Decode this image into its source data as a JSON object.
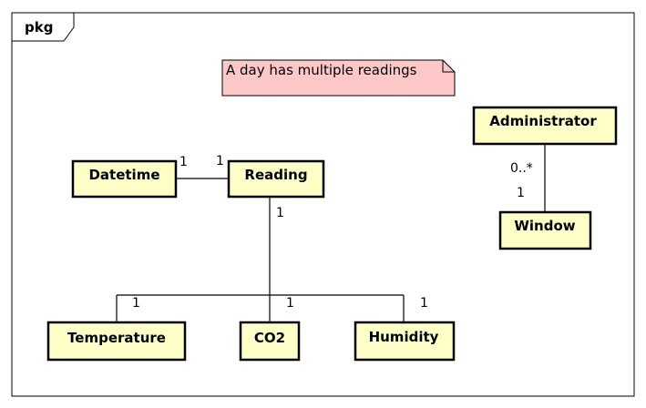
{
  "package": {
    "name": "pkg"
  },
  "note": {
    "text": "A day has multiple readings"
  },
  "classes": {
    "datetime": "Datetime",
    "reading": "Reading",
    "temperature": "Temperature",
    "co2": "CO2",
    "humidity": "Humidity",
    "administrator": "Administrator",
    "window": "Window"
  },
  "multiplicities": {
    "datetime_reading_left": "1",
    "datetime_reading_right": "1",
    "reading_down": "1",
    "temperature": "1",
    "co2": "1",
    "humidity": "1",
    "administrator_end": "0..*",
    "window_end": "1"
  },
  "colors": {
    "class_fill": "#ffffc8",
    "note_fill": "#ffc8c8",
    "line": "#000000"
  }
}
